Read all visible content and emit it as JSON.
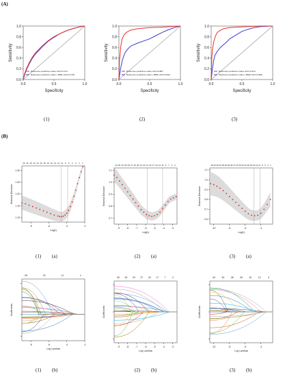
{
  "sections": {
    "A": "(A)",
    "B": "(B)"
  },
  "captions": {
    "roc": [
      "(1)",
      "(2)",
      "(3)"
    ],
    "cv": [
      {
        "num": "(1)",
        "sub": "(a)"
      },
      {
        "num": "(2)",
        "sub": "(a)"
      },
      {
        "num": "(3)",
        "sub": "(a)"
      }
    ],
    "path": [
      {
        "num": "(1)",
        "sub": "(b)"
      },
      {
        "num": "(2)",
        "sub": "(b)"
      },
      {
        "num": "(3)",
        "sub": "(b)"
      }
    ]
  },
  "colors": {
    "red": "#e8322a",
    "blue": "#3a3ad0",
    "diag": "#9a9a9a",
    "band": "#dcdcdc",
    "dots": "#e02020",
    "vline": "#aaaaaa"
  },
  "chart_data": [
    {
      "type": "line",
      "panel": "A1",
      "xlabel": "Specificity",
      "ylabel": "Sensitivity",
      "xlim": [
        0,
        1
      ],
      "ylim": [
        0,
        1
      ],
      "xticks": [
        "0.0",
        "0.5",
        "1.0"
      ],
      "yticks": [
        "0.0",
        "0.2",
        "0.4",
        "0.6",
        "0.8",
        "1.0"
      ],
      "series": [
        {
          "name": "Reference predictive model, AUC=0.724",
          "color": "red",
          "x": [
            0,
            0.02,
            0.05,
            0.1,
            0.15,
            0.2,
            0.3,
            0.4,
            0.5,
            0.6,
            0.7,
            0.8,
            0.9,
            1.0
          ],
          "y": [
            0,
            0.1,
            0.2,
            0.32,
            0.42,
            0.5,
            0.62,
            0.72,
            0.8,
            0.86,
            0.91,
            0.95,
            0.98,
            1.0
          ]
        },
        {
          "name": "Reference predictive model + BMR, AUC=0.728",
          "color": "blue",
          "x": [
            0,
            0.02,
            0.05,
            0.1,
            0.15,
            0.2,
            0.3,
            0.4,
            0.5,
            0.6,
            0.7,
            0.8,
            0.9,
            1.0
          ],
          "y": [
            0,
            0.08,
            0.18,
            0.3,
            0.4,
            0.48,
            0.6,
            0.71,
            0.79,
            0.86,
            0.91,
            0.95,
            0.98,
            1.0
          ]
        }
      ]
    },
    {
      "type": "line",
      "panel": "A2",
      "xlabel": "Specificity",
      "ylabel": "Sensitivity",
      "xlim": [
        0,
        1
      ],
      "ylim": [
        0,
        1
      ],
      "xticks": [
        "0.0",
        "0.5",
        "1.0"
      ],
      "yticks": [
        "0.0",
        "0.2",
        "0.4",
        "0.6",
        "0.8",
        "1.0"
      ],
      "series": [
        {
          "name": "Reference predictive model, AUC=0.887",
          "color": "red",
          "x": [
            0,
            0.01,
            0.03,
            0.05,
            0.08,
            0.12,
            0.18,
            0.3,
            0.5,
            0.7,
            0.85,
            1.0
          ],
          "y": [
            0,
            0.35,
            0.62,
            0.75,
            0.83,
            0.88,
            0.92,
            0.95,
            0.97,
            0.98,
            0.99,
            1.0
          ]
        },
        {
          "name": "Reference predictive model + BMR, AUC=0.813",
          "color": "blue",
          "x": [
            0,
            0.03,
            0.06,
            0.1,
            0.15,
            0.2,
            0.3,
            0.4,
            0.5,
            0.6,
            0.7,
            0.8,
            0.9,
            1.0
          ],
          "y": [
            0,
            0.22,
            0.38,
            0.5,
            0.58,
            0.63,
            0.68,
            0.72,
            0.76,
            0.82,
            0.88,
            0.93,
            0.97,
            1.0
          ]
        }
      ]
    },
    {
      "type": "line",
      "panel": "A3",
      "xlabel": "Specificity",
      "ylabel": "Sensitivity",
      "xlim": [
        0,
        1
      ],
      "ylim": [
        0,
        1
      ],
      "xticks": [
        "0.0",
        "0.5",
        "1.0"
      ],
      "yticks": [
        "0.0",
        "0.2",
        "0.4",
        "0.6",
        "0.8",
        "1.0"
      ],
      "series": [
        {
          "name": "Reference predictive model, AUC=0.914",
          "color": "red",
          "x": [
            0,
            0.01,
            0.02,
            0.04,
            0.06,
            0.08,
            0.1,
            0.15,
            0.2,
            0.3,
            0.4,
            0.6,
            0.8,
            1.0
          ],
          "y": [
            0,
            0.4,
            0.55,
            0.7,
            0.78,
            0.84,
            0.88,
            0.92,
            0.95,
            0.97,
            0.98,
            0.99,
            1.0,
            1.0
          ]
        },
        {
          "name": "Reference predictive model + BMR, AUC=0.839",
          "color": "blue",
          "x": [
            0,
            0.02,
            0.04,
            0.06,
            0.1,
            0.15,
            0.2,
            0.25,
            0.3,
            0.4,
            0.5,
            0.6,
            0.7,
            0.8,
            1.0
          ],
          "y": [
            0,
            0.2,
            0.35,
            0.45,
            0.53,
            0.6,
            0.65,
            0.7,
            0.76,
            0.83,
            0.9,
            0.94,
            0.97,
            0.99,
            1.0
          ]
        }
      ]
    },
    {
      "type": "scatter",
      "panel": "B1a",
      "xlabel": "Log(λ)",
      "ylabel": "Binomial Deviance",
      "xlim": [
        -9,
        -2
      ],
      "ylim": [
        1.08,
        1.32
      ],
      "xticks": [
        "-8",
        "-6",
        "-4",
        "-2"
      ],
      "yticks": [
        "1.10",
        "1.15",
        "1.20",
        "1.25",
        "1.30"
      ],
      "vlines": [
        -4.6,
        -3.9
      ],
      "top_ticks": [
        "26",
        "26",
        "26",
        "24",
        "24",
        "22",
        "20",
        "19",
        "16",
        "14",
        "12",
        "11",
        "9",
        "6",
        "4",
        "3",
        "1",
        "1"
      ],
      "x": [
        -9.0,
        -8.6,
        -8.2,
        -7.8,
        -7.4,
        -7.0,
        -6.6,
        -6.2,
        -5.8,
        -5.4,
        -5.0,
        -4.8,
        -4.6,
        -4.4,
        -4.2,
        -4.0,
        -3.8,
        -3.6,
        -3.4,
        -3.2,
        -3.0,
        -2.8,
        -2.6,
        -2.4,
        -2.2
      ],
      "y": [
        1.162,
        1.158,
        1.152,
        1.146,
        1.14,
        1.134,
        1.128,
        1.122,
        1.116,
        1.11,
        1.106,
        1.104,
        1.103,
        1.105,
        1.11,
        1.118,
        1.13,
        1.146,
        1.166,
        1.19,
        1.216,
        1.244,
        1.27,
        1.295,
        1.316
      ],
      "band": [
        0.03,
        0.03,
        0.03,
        0.029,
        0.029,
        0.028,
        0.027,
        0.026,
        0.025,
        0.024,
        0.022,
        0.021,
        0.02,
        0.02,
        0.02,
        0.02,
        0.019,
        0.018,
        0.017,
        0.016,
        0.015,
        0.013,
        0.011,
        0.009,
        0.007
      ]
    },
    {
      "type": "scatter",
      "panel": "B2a",
      "xlabel": "Log(λ)",
      "ylabel": "Binomial Deviance",
      "xlim": [
        -9.5,
        -2.5
      ],
      "ylim": [
        0.65,
        1.12
      ],
      "xticks": [
        "-9",
        "-8",
        "-7",
        "-6",
        "-5",
        "-4",
        "-3"
      ],
      "yticks": [
        "0.7",
        "0.8",
        "0.9",
        "1.0",
        "1.1"
      ],
      "vlines": [
        -5.8,
        -4.1
      ],
      "top_ticks": [
        "30",
        "30",
        "29",
        "29",
        "28",
        "27",
        "26",
        "25",
        "24",
        "23",
        "21",
        "20",
        "17",
        "16",
        "14",
        "11",
        "9",
        "7",
        "4",
        "2"
      ],
      "x": [
        -9.5,
        -9.2,
        -8.9,
        -8.6,
        -8.3,
        -8.0,
        -7.7,
        -7.4,
        -7.1,
        -6.8,
        -6.5,
        -6.2,
        -5.9,
        -5.6,
        -5.3,
        -5.0,
        -4.7,
        -4.4,
        -4.1,
        -3.8,
        -3.5,
        -3.2,
        -2.9,
        -2.6
      ],
      "y": [
        1.06,
        1.04,
        1.01,
        0.98,
        0.95,
        0.92,
        0.89,
        0.86,
        0.83,
        0.8,
        0.77,
        0.75,
        0.73,
        0.72,
        0.715,
        0.72,
        0.73,
        0.75,
        0.78,
        0.81,
        0.84,
        0.86,
        0.87,
        0.88
      ],
      "band": [
        0.06,
        0.06,
        0.058,
        0.056,
        0.054,
        0.052,
        0.05,
        0.048,
        0.046,
        0.044,
        0.042,
        0.04,
        0.038,
        0.036,
        0.035,
        0.034,
        0.033,
        0.032,
        0.031,
        0.03,
        0.029,
        0.028,
        0.027,
        0.026
      ]
    },
    {
      "type": "scatter",
      "panel": "B3a",
      "xlabel": "Log(λ)",
      "ylabel": "Binomial Deviance",
      "xlim": [
        -10.5,
        -2.5
      ],
      "ylim": [
        0.55,
        1.12
      ],
      "xticks": [
        "-10",
        "-8",
        "-6",
        "-4"
      ],
      "yticks": [
        "0.6",
        "0.7",
        "0.8",
        "0.9",
        "1.0",
        "1.1"
      ],
      "vlines": [
        -4.9,
        -4.1
      ],
      "top_ticks": [
        "30",
        "30",
        "30",
        "30",
        "29",
        "29",
        "28",
        "28",
        "27",
        "26",
        "25",
        "23",
        "22",
        "20",
        "18",
        "16",
        "14",
        "12",
        "8",
        "5",
        "3",
        "1"
      ],
      "x": [
        -10.4,
        -10.0,
        -9.6,
        -9.2,
        -8.8,
        -8.4,
        -8.0,
        -7.6,
        -7.2,
        -6.8,
        -6.4,
        -6.0,
        -5.6,
        -5.2,
        -4.8,
        -4.4,
        -4.0,
        -3.6,
        -3.2,
        -2.8
      ],
      "y": [
        0.96,
        0.95,
        0.935,
        0.915,
        0.89,
        0.86,
        0.83,
        0.8,
        0.77,
        0.74,
        0.71,
        0.68,
        0.655,
        0.64,
        0.635,
        0.64,
        0.66,
        0.7,
        0.75,
        0.8
      ],
      "band": [
        0.12,
        0.115,
        0.11,
        0.105,
        0.1,
        0.095,
        0.09,
        0.085,
        0.08,
        0.075,
        0.07,
        0.065,
        0.06,
        0.056,
        0.053,
        0.052,
        0.055,
        0.06,
        0.065,
        0.07
      ]
    },
    {
      "type": "line",
      "panel": "B1b",
      "xlabel": "Log Lambda",
      "ylabel": "Coefficients",
      "xlim": [
        -9,
        -2
      ],
      "ylim": [
        -1.2,
        1.6
      ],
      "xticks": [
        "-8",
        "-6",
        "-4",
        "-2"
      ],
      "top_ticks": [
        "26",
        "24",
        "11",
        "1"
      ]
    },
    {
      "type": "line",
      "panel": "B2b",
      "xlabel": "Log Lambda",
      "ylabel": "Coefficients",
      "xlim": [
        -9.5,
        -2.5
      ],
      "ylim": [
        -1.6,
        1.6
      ],
      "xticks": [
        "-9",
        "-8",
        "-7",
        "-6",
        "-5",
        "-4",
        "-3"
      ],
      "top_ticks": [
        "30",
        "30",
        "29",
        "27",
        "20",
        "17",
        "7",
        "2"
      ]
    },
    {
      "type": "line",
      "panel": "B3b",
      "xlabel": "Log Lambda",
      "ylabel": "Coefficients",
      "xlim": [
        -10.5,
        -2.5
      ],
      "ylim": [
        -1.6,
        1.6
      ],
      "xticks": [
        "-10",
        "-8",
        "-6",
        "-4"
      ],
      "top_ticks": [
        "30",
        "30",
        "28",
        "26",
        "20",
        "12",
        "3"
      ]
    }
  ]
}
